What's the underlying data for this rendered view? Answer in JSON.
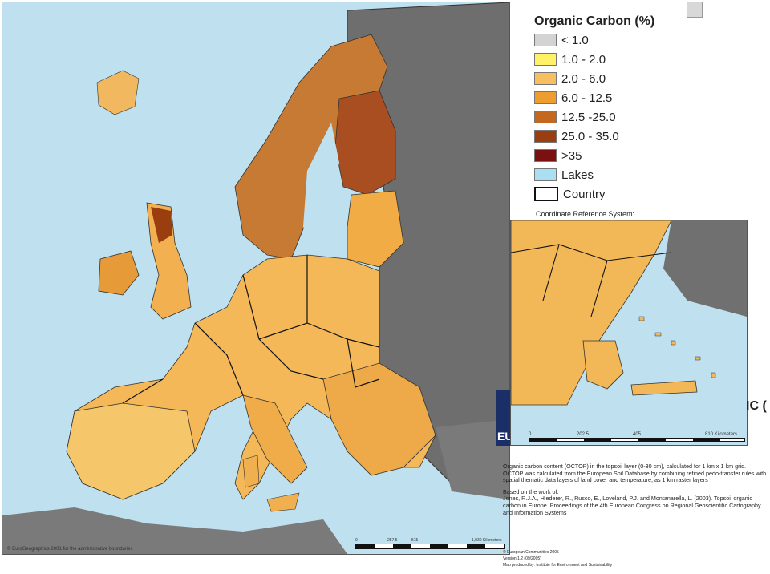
{
  "legend": {
    "title": "Organic Carbon (%)",
    "items": [
      {
        "label": "< 1.0",
        "color": "#d3d3d3"
      },
      {
        "label": "1.0 - 2.0",
        "color": "#fff266"
      },
      {
        "label": "2.0 - 6.0",
        "color": "#f6c060"
      },
      {
        "label": "6.0 - 12.5",
        "color": "#ee9e30"
      },
      {
        "label": "12.5 -25.0",
        "color": "#c46820"
      },
      {
        "label": "25.0 - 35.0",
        "color": "#9a3e10"
      },
      {
        "label": ">35",
        "color": "#7a1010"
      },
      {
        "label": "Lakes",
        "color": "#aadff2"
      },
      {
        "label": "Country",
        "color": "#ffffff"
      }
    ],
    "crs_label": "Coordinate Reference System:"
  },
  "map": {
    "attribution": "© EuroGeographics 2001 for the administrative boundaries",
    "scale_ticks": [
      "0",
      "257.5",
      "515",
      "1,030 Kilometers"
    ]
  },
  "inset": {
    "scale_ticks": [
      "0",
      "202.5",
      "405",
      "810 Kilometers"
    ],
    "right_label": "IC (",
    "left_label": "EU"
  },
  "description": {
    "p1": "Organic carbon content (OCTOP) in the topsoil layer (0-30 cm), calculated for 1 km x 1 km grid. OCTOP was calculated from the European Soil Database by combining refined pedo-transfer rules with spatial thematic data layers of land cover and temperature, as 1 km raster layers",
    "p2_heading": "Based on the work of:",
    "p2": "Jones, R.J.A., Hiederer, R., Rusco, E., Loveland, P.J. and Montanarella, L. (2003). Topsoil organic carbon in Europe. Proceedings of the 4th European Congress on Regional Geoscientific Cartography and Information Systems"
  },
  "footer": {
    "copyright": "© European Communities 2005",
    "version": "Version 1.2 (09/2005)",
    "producer": "Map produced by: Institute for Environment and Sustainability"
  },
  "colors": {
    "sea": "#bfe0ef",
    "non_eu_land": "#6e6e6e",
    "border": "#111111"
  }
}
